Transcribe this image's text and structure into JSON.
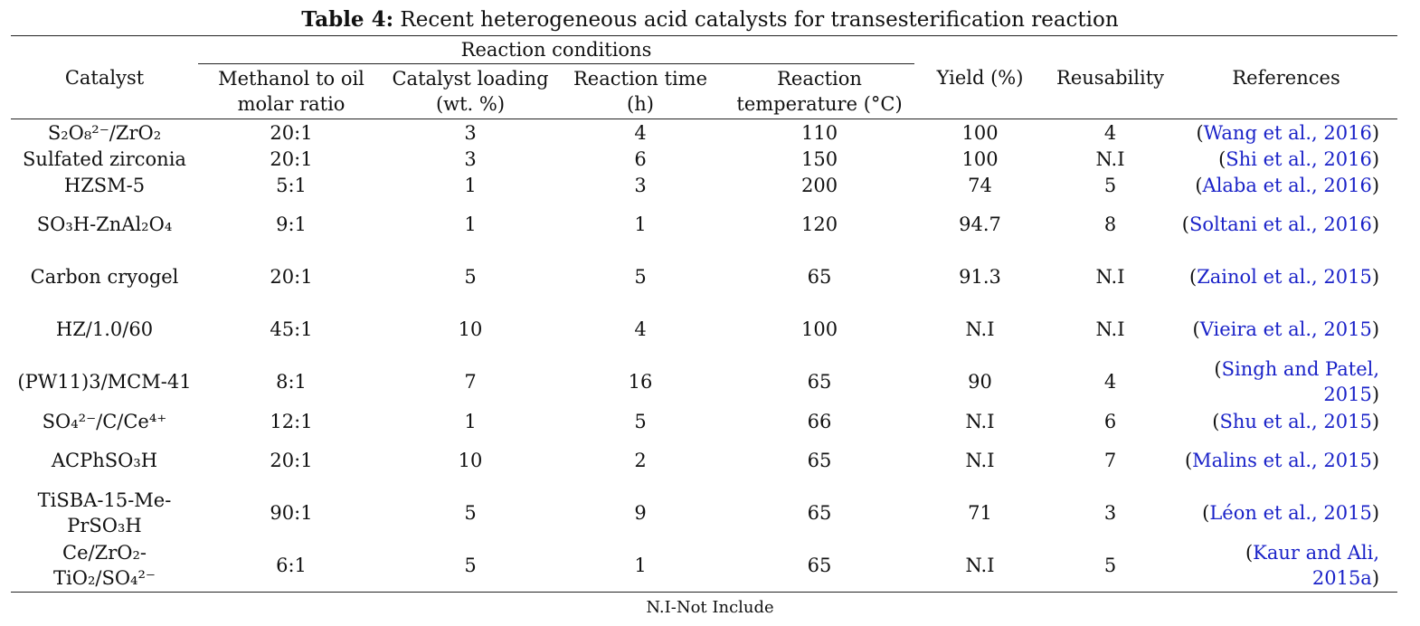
{
  "caption": {
    "label": "Table 4:",
    "text": " Recent heterogeneous acid catalysts for transesterification reaction"
  },
  "headers": {
    "catalyst": "Catalyst",
    "reaction_conditions": "Reaction conditions",
    "methanol": "Methanol to oil molar ratio",
    "loading": "Catalyst loading (wt. %)",
    "time": "Reaction time (h)",
    "temperature": "Reaction temperature (°C)",
    "yield": "Yield (%)",
    "reusability": "Reusability",
    "references": "References"
  },
  "rows": [
    {
      "catalyst": "S₂O₈²⁻/ZrO₂",
      "ratio": "20:1",
      "loading": "3",
      "time": "4",
      "temp": "110",
      "yield": "100",
      "reuse": "4",
      "ref": "Wang et al., 2016",
      "lines": 1
    },
    {
      "catalyst": "Sulfated zirconia",
      "ratio": "20:1",
      "loading": "3",
      "time": "6",
      "temp": "150",
      "yield": "100",
      "reuse": "N.I",
      "ref": "Shi et al., 2016",
      "lines": 1
    },
    {
      "catalyst": "HZSM-5",
      "ratio": "5:1",
      "loading": "1",
      "time": "3",
      "temp": "200",
      "yield": "74",
      "reuse": "5",
      "ref": "Alaba et al., 2016",
      "lines": 1
    },
    {
      "catalyst": "SO₃H-ZnAl₂O₄",
      "ratio": "9:1",
      "loading": "1",
      "time": "1",
      "temp": "120",
      "yield": "94.7",
      "reuse": "8",
      "ref": "Soltani et al., 2016",
      "lines": 2
    },
    {
      "catalyst": "Carbon cryogel",
      "ratio": "20:1",
      "loading": "5",
      "time": "5",
      "temp": "65",
      "yield": "91.3",
      "reuse": "N.I",
      "ref": "Zainol et al., 2015",
      "lines": 2
    },
    {
      "catalyst": "HZ/1.0/60",
      "ratio": "45:1",
      "loading": "10",
      "time": "4",
      "temp": "100",
      "yield": "N.I",
      "reuse": "N.I",
      "ref": "Vieira et al., 2015",
      "lines": 2
    },
    {
      "catalyst": "(PW11)3/MCM-41",
      "ratio": "8:1",
      "loading": "7",
      "time": "16",
      "temp": "65",
      "yield": "90",
      "reuse": "4",
      "ref": "Singh and Patel, 2015",
      "lines": 2
    },
    {
      "catalyst": "SO₄²⁻/C/Ce⁴⁺",
      "ratio": "12:1",
      "loading": "1",
      "time": "5",
      "temp": "66",
      "yield": "N.I",
      "reuse": "6",
      "ref": "Shu et al., 2015",
      "lines": 1
    },
    {
      "catalyst": "ACPhSO₃H",
      "ratio": "20:1",
      "loading": "10",
      "time": "2",
      "temp": "65",
      "yield": "N.I",
      "reuse": "7",
      "ref": "Malins et al., 2015",
      "lines": 2
    },
    {
      "catalyst": "TiSBA-15-Me-PrSO₃H",
      "ratio": "90:1",
      "loading": "5",
      "time": "9",
      "temp": "65",
      "yield": "71",
      "reuse": "3",
      "ref": "Léon et al., 2015",
      "lines": 2
    },
    {
      "catalyst": "Ce/ZrO₂-TiO₂/SO₄²⁻",
      "ratio": "6:1",
      "loading": "5",
      "time": "1",
      "temp": "65",
      "yield": "N.I",
      "reuse": "5",
      "ref": "Kaur and Ali, 2015a",
      "lines": 2
    }
  ],
  "footnote": "N.I-Not Include"
}
